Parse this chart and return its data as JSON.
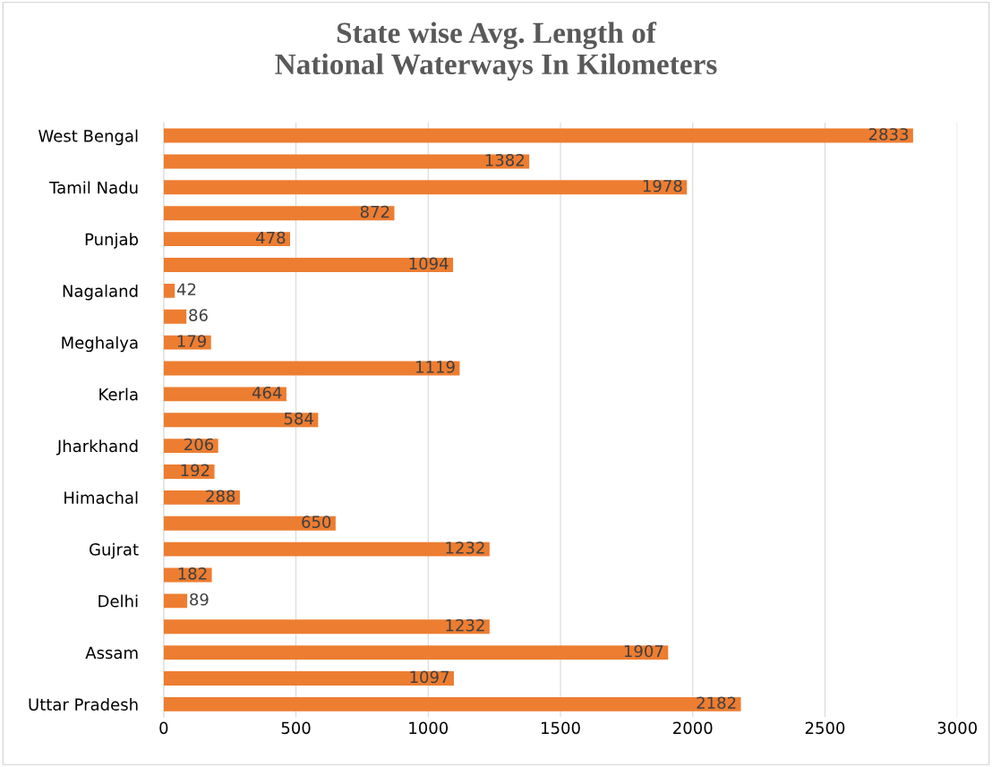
{
  "chart_data": {
    "type": "bar",
    "orientation": "horizontal",
    "title": "State wise Avg. Length of\nNational Waterways In Kilometers",
    "categories": [
      "West Bengal",
      null,
      "Tamil Nadu",
      null,
      "Punjab",
      null,
      "Nagaland",
      null,
      "Meghalya",
      null,
      "Kerla",
      null,
      "Jharkhand",
      null,
      "Himachal",
      null,
      "Gujrat",
      null,
      "Delhi",
      null,
      "Assam",
      null,
      "Uttar Pradesh"
    ],
    "values": [
      2833,
      1382,
      1978,
      872,
      478,
      1094,
      42,
      86,
      179,
      1119,
      464,
      584,
      206,
      192,
      288,
      650,
      1232,
      182,
      89,
      1232,
      1907,
      1097,
      2182
    ],
    "color": "#ed7d31",
    "data_labels": true,
    "xlim": [
      0,
      3000
    ],
    "xticks": [
      0,
      500,
      1000,
      1500,
      2000,
      2500,
      3000
    ],
    "grid": "x",
    "legend": false
  }
}
